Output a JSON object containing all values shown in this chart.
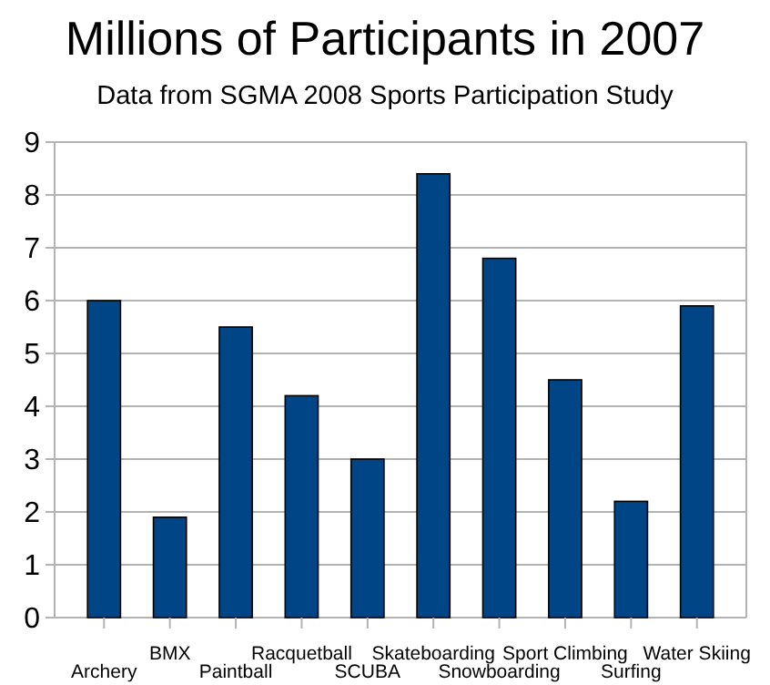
{
  "chart_data": {
    "type": "bar",
    "title": "Millions of Participants in 2007",
    "subtitle": "Data from SGMA 2008 Sports Participation Study",
    "categories": [
      "Archery",
      "BMX",
      "Paintball",
      "Racquetball",
      "SCUBA",
      "Skateboarding",
      "Snowboarding",
      "Sport Climbing",
      "Surfing",
      "Water Skiing"
    ],
    "values": [
      6,
      1.9,
      5.5,
      4.2,
      3,
      8.4,
      6.8,
      4.5,
      2.2,
      5.9
    ],
    "color": "#004586",
    "ylim": [
      0,
      9
    ],
    "yticks": [
      0,
      1,
      2,
      3,
      4,
      5,
      6,
      7,
      8,
      9
    ],
    "grid": "y"
  }
}
